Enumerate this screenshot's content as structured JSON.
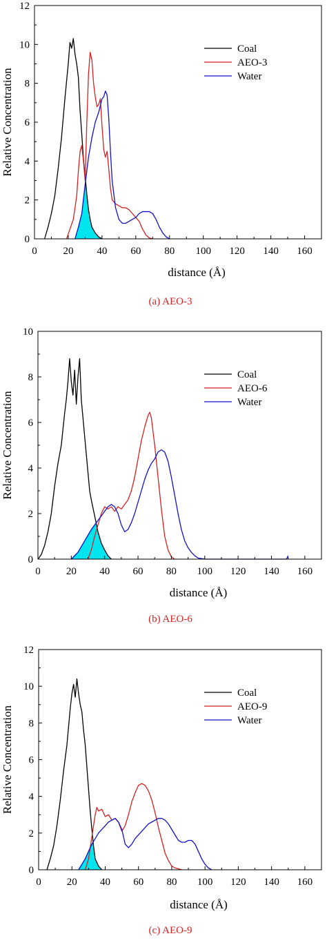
{
  "colors": {
    "coal": "#000000",
    "aeo": "#d42020",
    "water": "#1010c8",
    "overlap": "#00e5ee"
  },
  "chart_data": [
    {
      "type": "line",
      "caption": "(a) AEO-3",
      "xlabel": "distance (Å)",
      "ylabel": "Relative Concentration",
      "xlim": [
        0,
        170
      ],
      "ylim": [
        0,
        12
      ],
      "xticks": [
        "0",
        "20",
        "40",
        "60",
        "80",
        "100",
        "120",
        "140",
        "160"
      ],
      "yticks": [
        "0",
        "2",
        "4",
        "6",
        "8",
        "10",
        "12"
      ],
      "legend_position": "top-right",
      "series": [
        {
          "name": "Coal",
          "x": [
            6,
            8,
            10,
            12,
            14,
            16,
            17,
            18,
            19,
            20,
            21,
            22,
            23,
            24,
            25,
            26,
            27,
            28,
            29,
            30,
            31,
            32,
            33,
            34,
            36,
            38,
            40
          ],
          "y": [
            0,
            0.6,
            1.3,
            2.2,
            3.6,
            5.2,
            6.2,
            7.2,
            8.1,
            9.0,
            10.1,
            9.8,
            10.3,
            9.5,
            9.0,
            8.3,
            6.6,
            5.4,
            4.1,
            3.2,
            2.3,
            1.5,
            1.0,
            0.6,
            0.3,
            0.1,
            0
          ]
        },
        {
          "name": "AEO-3",
          "x": [
            19,
            21,
            23,
            25,
            26,
            27,
            28,
            29,
            30,
            31,
            32,
            33,
            34,
            35,
            36,
            37,
            38,
            39,
            40,
            41,
            42,
            43,
            44,
            45,
            46,
            48,
            50,
            52,
            54,
            56,
            58,
            60,
            62,
            64,
            66,
            68,
            70
          ],
          "y": [
            0,
            0.5,
            1.0,
            2.2,
            3.5,
            4.5,
            4.8,
            4.0,
            3.0,
            6.0,
            8.5,
            9.6,
            9.2,
            8.0,
            7.3,
            6.8,
            6.9,
            7.2,
            5.8,
            4.6,
            4.2,
            4.5,
            3.6,
            2.6,
            2.0,
            1.8,
            1.7,
            1.6,
            1.6,
            1.5,
            1.3,
            1.1,
            0.9,
            0.5,
            0.2,
            0.05,
            0
          ]
        },
        {
          "name": "Water",
          "x": [
            24,
            26,
            28,
            30,
            32,
            34,
            36,
            38,
            40,
            41,
            42,
            43,
            44,
            45,
            46,
            48,
            50,
            52,
            54,
            56,
            58,
            60,
            62,
            64,
            66,
            68,
            70,
            72,
            74,
            76,
            78,
            80
          ],
          "y": [
            0,
            0.6,
            1.3,
            2.8,
            4.2,
            5.2,
            6.0,
            6.5,
            7.2,
            7.3,
            7.6,
            7.4,
            6.2,
            4.5,
            3.0,
            1.6,
            1.0,
            0.8,
            0.8,
            0.9,
            1.0,
            1.1,
            1.3,
            1.4,
            1.4,
            1.4,
            1.3,
            1.0,
            0.6,
            0.3,
            0.1,
            0
          ]
        }
      ]
    },
    {
      "type": "line",
      "caption": "(b) AEO-6",
      "xlabel": "distance (Å)",
      "ylabel": "Relative Concentration",
      "xlim": [
        0,
        170
      ],
      "ylim": [
        0,
        10
      ],
      "xticks": [
        "0",
        "20",
        "40",
        "60",
        "80",
        "100",
        "120",
        "140",
        "160"
      ],
      "yticks": [
        "0",
        "2",
        "4",
        "6",
        "8",
        "10"
      ],
      "legend_position": "top-right",
      "series": [
        {
          "name": "Coal",
          "x": [
            0,
            2,
            4,
            6,
            8,
            10,
            12,
            14,
            16,
            17,
            18,
            19,
            20,
            21,
            22,
            23,
            24,
            25,
            26,
            27,
            28,
            29,
            30,
            31,
            32,
            34,
            36,
            38,
            40,
            42,
            44
          ],
          "y": [
            0,
            0.2,
            0.6,
            1.2,
            2.0,
            3.2,
            4.2,
            5.0,
            6.4,
            7.0,
            7.8,
            8.8,
            7.8,
            7.2,
            8.3,
            6.8,
            8.0,
            8.8,
            7.0,
            6.2,
            5.4,
            4.6,
            3.8,
            3.0,
            2.6,
            1.9,
            1.2,
            0.7,
            0.4,
            0.15,
            0
          ]
        },
        {
          "name": "AEO-6",
          "x": [
            30,
            32,
            34,
            36,
            38,
            40,
            42,
            44,
            46,
            48,
            50,
            52,
            54,
            56,
            58,
            60,
            62,
            64,
            66,
            67,
            68,
            70,
            72,
            74,
            76,
            78,
            80,
            82
          ],
          "y": [
            0,
            0.4,
            1.0,
            1.5,
            2.0,
            2.3,
            2.2,
            2.3,
            2.1,
            2.3,
            2.2,
            2.4,
            2.6,
            3.0,
            3.6,
            4.4,
            5.2,
            5.8,
            6.3,
            6.45,
            6.2,
            5.0,
            3.6,
            2.2,
            1.0,
            0.4,
            0.1,
            0
          ]
        },
        {
          "name": "Water",
          "x": [
            20,
            24,
            28,
            32,
            36,
            40,
            42,
            44,
            46,
            48,
            50,
            52,
            54,
            56,
            58,
            60,
            62,
            64,
            66,
            68,
            70,
            72,
            74,
            76,
            78,
            80,
            82,
            84,
            86,
            88,
            90,
            92,
            94,
            96,
            100,
            110,
            120,
            130,
            140,
            149,
            150
          ],
          "y": [
            0,
            0.3,
            0.8,
            1.3,
            1.7,
            2.1,
            2.3,
            2.4,
            2.3,
            2.0,
            1.5,
            1.2,
            1.3,
            1.6,
            2.0,
            2.5,
            3.0,
            3.5,
            3.9,
            4.2,
            4.4,
            4.7,
            4.8,
            4.7,
            4.3,
            3.6,
            2.8,
            2.0,
            1.3,
            0.8,
            0.5,
            0.3,
            0.15,
            0.05,
            0,
            0,
            0,
            0,
            0,
            0,
            0.15
          ]
        }
      ]
    },
    {
      "type": "line",
      "caption": "(c) AEO-9",
      "xlabel": "distance (Å)",
      "ylabel": "Relative Concentration",
      "xlim": [
        0,
        170
      ],
      "ylim": [
        0,
        12
      ],
      "xticks": [
        "0",
        "20",
        "40",
        "60",
        "80",
        "100",
        "120",
        "140",
        "160"
      ],
      "yticks": [
        "0",
        "2",
        "4",
        "6",
        "8",
        "10",
        "12"
      ],
      "legend_position": "top-right",
      "series": [
        {
          "name": "Coal",
          "x": [
            5,
            7,
            9,
            11,
            13,
            15,
            17,
            18,
            19,
            20,
            21,
            22,
            23,
            24,
            25,
            26,
            27,
            28,
            29,
            30,
            31,
            32,
            33,
            34,
            36,
            38
          ],
          "y": [
            0,
            0.6,
            1.3,
            2.4,
            3.8,
            5.4,
            6.8,
            7.8,
            8.8,
            9.6,
            10.1,
            9.4,
            10.4,
            9.6,
            9.0,
            8.6,
            7.6,
            6.8,
            5.6,
            4.4,
            3.2,
            2.2,
            1.3,
            0.6,
            0.2,
            0
          ]
        },
        {
          "name": "AEO-9",
          "x": [
            28,
            30,
            32,
            34,
            35,
            36,
            38,
            40,
            42,
            44,
            46,
            48,
            50,
            52,
            54,
            56,
            58,
            60,
            62,
            64,
            66,
            68,
            70,
            72,
            74,
            76,
            78,
            80,
            82,
            84,
            86
          ],
          "y": [
            0,
            0.6,
            1.8,
            3.0,
            3.4,
            3.2,
            3.3,
            2.9,
            3.0,
            2.7,
            2.8,
            2.6,
            2.1,
            2.4,
            3.0,
            3.7,
            4.2,
            4.6,
            4.7,
            4.6,
            4.3,
            3.8,
            3.1,
            2.3,
            1.6,
            0.9,
            0.5,
            0.2,
            0.1,
            0.05,
            0
          ]
        },
        {
          "name": "Water",
          "x": [
            24,
            28,
            32,
            36,
            40,
            42,
            44,
            46,
            48,
            50,
            52,
            54,
            56,
            58,
            60,
            62,
            64,
            66,
            68,
            70,
            72,
            74,
            76,
            78,
            80,
            82,
            84,
            86,
            88,
            90,
            92,
            94,
            96,
            98,
            100,
            102,
            104
          ],
          "y": [
            0,
            0.6,
            1.4,
            2.0,
            2.4,
            2.6,
            2.7,
            2.8,
            2.6,
            2.2,
            1.4,
            1.2,
            1.4,
            1.7,
            1.9,
            2.1,
            2.3,
            2.5,
            2.6,
            2.7,
            2.8,
            2.8,
            2.7,
            2.5,
            2.2,
            1.9,
            1.6,
            1.5,
            1.5,
            1.6,
            1.6,
            1.4,
            1.0,
            0.6,
            0.3,
            0.1,
            0
          ]
        }
      ]
    }
  ]
}
